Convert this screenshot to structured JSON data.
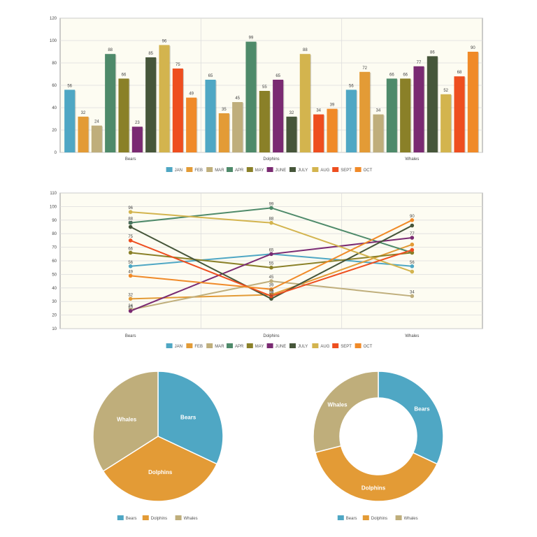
{
  "chart_data": [
    {
      "type": "bar",
      "categories": [
        "Bears",
        "Dolphins",
        "Whales"
      ],
      "ylim": [
        0,
        120
      ],
      "yticks": [
        0,
        20,
        40,
        60,
        80,
        100,
        120
      ],
      "grid": true,
      "legend": "bottom",
      "series": [
        {
          "name": "JAN",
          "color": "#4fa7c4",
          "values": [
            56,
            65,
            56
          ]
        },
        {
          "name": "FEB",
          "color": "#e39b36",
          "values": [
            32,
            35,
            72
          ]
        },
        {
          "name": "MAR",
          "color": "#bfae7b",
          "values": [
            24,
            45,
            34
          ]
        },
        {
          "name": "APR",
          "color": "#4e8a6a",
          "values": [
            88,
            99,
            66
          ]
        },
        {
          "name": "MAY",
          "color": "#8a8028",
          "values": [
            66,
            55,
            66
          ]
        },
        {
          "name": "JUNE",
          "color": "#7a2a72",
          "values": [
            23,
            65,
            77
          ]
        },
        {
          "name": "JULY",
          "color": "#46563a",
          "values": [
            85,
            32,
            86
          ]
        },
        {
          "name": "AUG",
          "color": "#d3b44e",
          "values": [
            96,
            88,
            52
          ]
        },
        {
          "name": "SEPT",
          "color": "#ee4e1f",
          "values": [
            75,
            34,
            68
          ]
        },
        {
          "name": "OCT",
          "color": "#f08a28",
          "values": [
            49,
            39,
            90
          ]
        }
      ]
    },
    {
      "type": "line",
      "categories": [
        "Bears",
        "Dolphins",
        "Whales"
      ],
      "ylim": [
        10,
        110
      ],
      "yticks": [
        10,
        20,
        30,
        40,
        50,
        60,
        70,
        80,
        90,
        100,
        110
      ],
      "grid": true,
      "legend": "bottom",
      "series": [
        {
          "name": "JAN",
          "color": "#4fa7c4",
          "values": [
            56,
            65,
            56
          ]
        },
        {
          "name": "FEB",
          "color": "#e39b36",
          "values": [
            32,
            35,
            72
          ]
        },
        {
          "name": "MAR",
          "color": "#bfae7b",
          "values": [
            24,
            45,
            34
          ]
        },
        {
          "name": "APR",
          "color": "#4e8a6a",
          "values": [
            88,
            99,
            66
          ]
        },
        {
          "name": "MAY",
          "color": "#8a8028",
          "values": [
            66,
            55,
            66
          ]
        },
        {
          "name": "JUNE",
          "color": "#7a2a72",
          "values": [
            23,
            65,
            77
          ]
        },
        {
          "name": "JULY",
          "color": "#46563a",
          "values": [
            85,
            32,
            86
          ]
        },
        {
          "name": "AUG",
          "color": "#d3b44e",
          "values": [
            96,
            88,
            52
          ]
        },
        {
          "name": "SEPT",
          "color": "#ee4e1f",
          "values": [
            75,
            34,
            68
          ]
        },
        {
          "name": "OCT",
          "color": "#f08a28",
          "values": [
            49,
            39,
            90
          ]
        }
      ],
      "line_labels": {
        "Bears": [
          96,
          88,
          85,
          75,
          66,
          56,
          49,
          32,
          24,
          23
        ],
        "Dolphins": [
          99,
          88,
          65,
          55,
          45,
          39,
          35,
          34,
          32
        ],
        "Whales": [
          90,
          77,
          56,
          34
        ]
      }
    },
    {
      "type": "pie",
      "labels": [
        "Bears",
        "Dolphins",
        "Whales"
      ],
      "values": [
        32,
        34,
        34
      ],
      "colors": [
        "#4fa7c4",
        "#e39b36",
        "#bfae7b"
      ],
      "legend": "bottom"
    },
    {
      "type": "pie",
      "donut": true,
      "labels": [
        "Bears",
        "Dolphins",
        "Whales"
      ],
      "values": [
        32,
        39,
        29
      ],
      "colors": [
        "#4fa7c4",
        "#e39b36",
        "#bfae7b"
      ],
      "legend": "bottom"
    }
  ]
}
